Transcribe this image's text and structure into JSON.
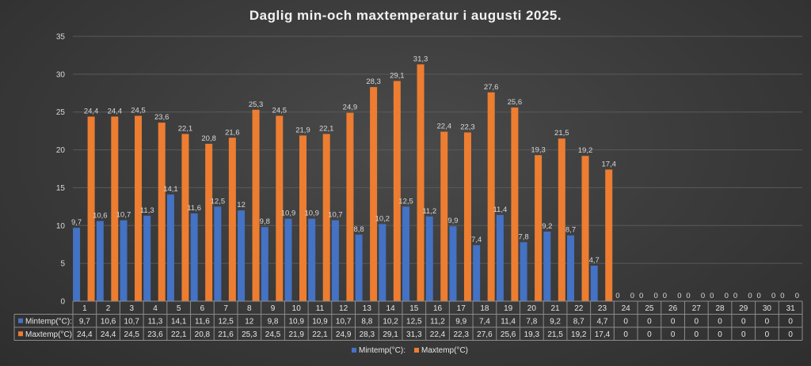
{
  "chart_data": {
    "type": "bar",
    "title": "Daglig min-och maxtemperatur i augusti 2025.",
    "categories": [
      "1",
      "2",
      "3",
      "4",
      "5",
      "6",
      "7",
      "8",
      "9",
      "10",
      "11",
      "12",
      "13",
      "14",
      "15",
      "16",
      "17",
      "18",
      "19",
      "20",
      "21",
      "22",
      "23",
      "24",
      "25",
      "26",
      "27",
      "28",
      "29",
      "30",
      "31"
    ],
    "series": [
      {
        "name": "Mintemp(°C):",
        "color": "#4472c4",
        "values": [
          9.7,
          10.6,
          10.7,
          11.3,
          14.1,
          11.6,
          12.5,
          12,
          9.8,
          10.9,
          10.9,
          10.7,
          8.8,
          10.2,
          12.5,
          11.2,
          9.9,
          7.4,
          11.4,
          7.8,
          9.2,
          8.7,
          4.7,
          0,
          0,
          0,
          0,
          0,
          0,
          0,
          0
        ],
        "labels": [
          "9,7",
          "10,6",
          "10,7",
          "11,3",
          "14,1",
          "11,6",
          "12,5",
          "12",
          "9,8",
          "10,9",
          "10,9",
          "10,7",
          "8,8",
          "10,2",
          "12,5",
          "11,2",
          "9,9",
          "7,4",
          "11,4",
          "7,8",
          "9,2",
          "8,7",
          "4,7",
          "0",
          "0",
          "0",
          "0",
          "0",
          "0",
          "0",
          "0"
        ]
      },
      {
        "name": "Maxtemp(°C)",
        "color": "#ed7d31",
        "values": [
          24.4,
          24.4,
          24.5,
          23.6,
          22.1,
          20.8,
          21.6,
          25.3,
          24.5,
          21.9,
          22.1,
          24.9,
          28.3,
          29.1,
          31.3,
          22.4,
          22.3,
          27.6,
          25.6,
          19.3,
          21.5,
          19.2,
          17.4,
          0,
          0,
          0,
          0,
          0,
          0,
          0,
          0
        ],
        "labels": [
          "24,4",
          "24,4",
          "24,5",
          "23,6",
          "22,1",
          "20,8",
          "21,6",
          "25,3",
          "24,5",
          "21,9",
          "22,1",
          "24,9",
          "28,3",
          "29,1",
          "31,3",
          "22,4",
          "22,3",
          "27,6",
          "25,6",
          "19,3",
          "21,5",
          "19,2",
          "17,4",
          "0",
          "0",
          "0",
          "0",
          "0",
          "0",
          "0",
          "0"
        ]
      }
    ],
    "ylim": [
      0,
      35
    ],
    "yticks": [
      0,
      5,
      10,
      15,
      20,
      25,
      30,
      35
    ],
    "grid": true,
    "legend": "bottom",
    "data_table": true
  }
}
